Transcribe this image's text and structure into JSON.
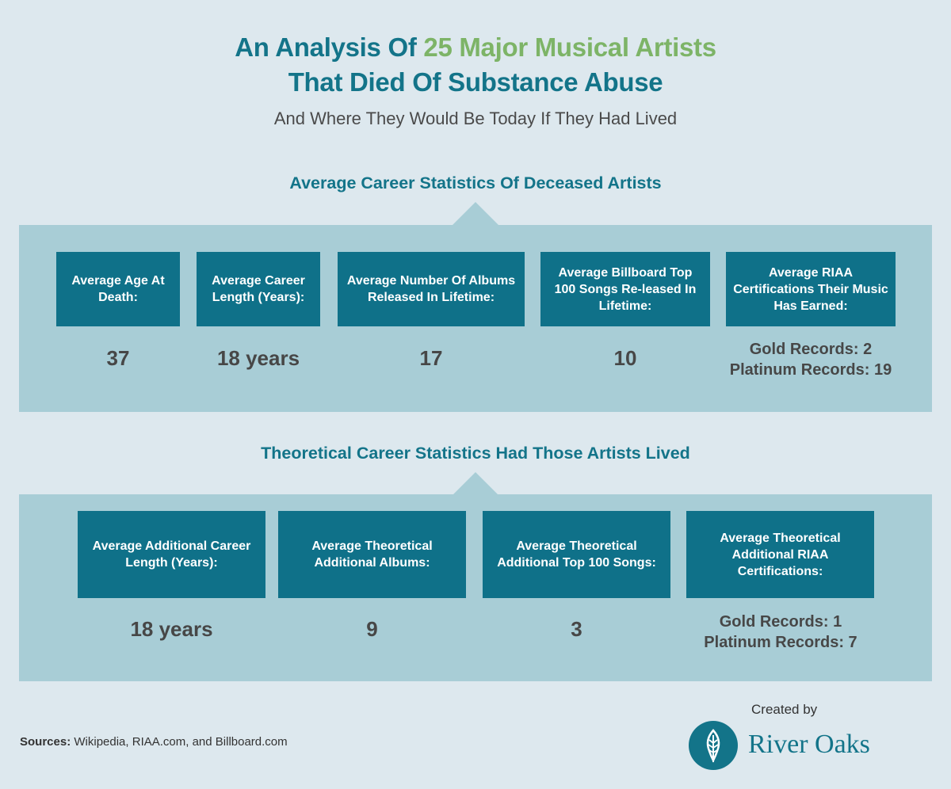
{
  "title": {
    "prefix": "An Analysis Of ",
    "highlight": "25 Major Musical Artists",
    "line2": "That Died Of Substance Abuse"
  },
  "subtitle": "And Where They Would Be Today If They Had Lived",
  "colors": {
    "background": "#dde8ee",
    "heading": "#137489",
    "highlight": "#7db467",
    "panel": "#a8cdd6",
    "box": "#0f7189",
    "value_text": "#474747"
  },
  "section1": {
    "heading": "Average Career Statistics Of Deceased Artists",
    "stats": [
      {
        "label": "Average Age At Death:",
        "value": "37"
      },
      {
        "label": "Average Career Length (Years):",
        "value": "18 years"
      },
      {
        "label": "Average Number Of Albums Released In Lifetime:",
        "value": "17"
      },
      {
        "label": "Average Billboard Top 100 Songs Re-leased In Lifetime:",
        "value": "10"
      },
      {
        "label": "Average RIAA Certifications Their Music Has Earned:",
        "value_line1": "Gold Records: 2",
        "value_line2": "Platinum Records: 19"
      }
    ]
  },
  "section2": {
    "heading": "Theoretical Career Statistics Had Those Artists Lived",
    "stats": [
      {
        "label": "Average Additional Career Length (Years):",
        "value": "18 years"
      },
      {
        "label": "Average Theoretical Additional Albums:",
        "value": "9"
      },
      {
        "label": "Average Theoretical Additional Top 100 Songs:",
        "value": "3"
      },
      {
        "label": "Average Theoretical Additional RIAA Certifications:",
        "value_line1": "Gold Records: 1",
        "value_line2": "Platinum Records: 7"
      }
    ]
  },
  "footer": {
    "sources_label": "Sources:",
    "sources_text": " Wikipedia, RIAA.com, and Billboard.com",
    "created_by": "Created by",
    "brand": "River Oaks",
    "logo_icon": "oak-leaf-icon"
  }
}
